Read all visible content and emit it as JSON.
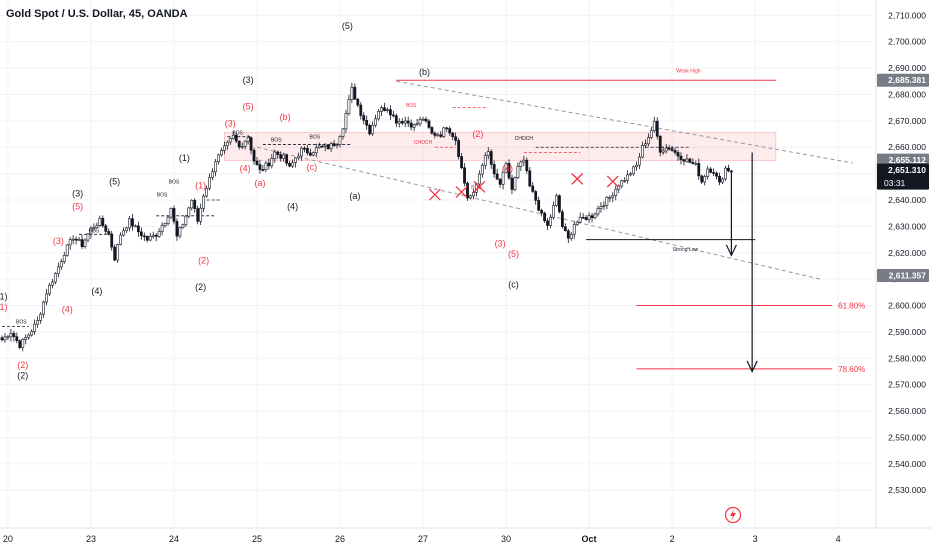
{
  "header": {
    "title": "Gold Spot / U.S. Dollar, 45, OANDA"
  },
  "chart_data": {
    "type": "candlestick",
    "symbol": "Gold Spot / U.S. Dollar",
    "interval": "45",
    "source": "OANDA",
    "ylim": [
      2525,
      2715
    ],
    "y_ticks": [
      2530,
      2540,
      2550,
      2560,
      2570,
      2580,
      2590,
      2600,
      2610,
      2620,
      2630,
      2640,
      2650,
      2660,
      2670,
      2680,
      2690,
      2700,
      2710
    ],
    "y_tick_labels": [
      "2,530.000",
      "2,540.000",
      "2,550.000",
      "2,560.000",
      "2,570.000",
      "2,580.000",
      "2,590.000",
      "2,600.000",
      "2,610.000",
      "2,620.000",
      "2,630.000",
      "2,640.000",
      "2,650.000",
      "2,660.000",
      "2,670.000",
      "2,680.000",
      "2,690.000",
      "2,700.000",
      "2,710.000"
    ],
    "x_ticks": [
      {
        "label": "20",
        "i": 2
      },
      {
        "label": "23",
        "i": 30
      },
      {
        "label": "24",
        "i": 58
      },
      {
        "label": "25",
        "i": 86
      },
      {
        "label": "26",
        "i": 114
      },
      {
        "label": "27",
        "i": 142
      },
      {
        "label": "30",
        "i": 170
      },
      {
        "label": "Oct",
        "i": 198
      },
      {
        "label": "2",
        "i": 226
      },
      {
        "label": "3",
        "i": 254
      },
      {
        "label": "4",
        "i": 282
      }
    ],
    "price_tags": [
      {
        "value": 2685.381,
        "label": "2,685.381",
        "style": "gray"
      },
      {
        "value": 2655.112,
        "label": "2,655.112",
        "style": "gray"
      },
      {
        "value": 2651.31,
        "label": "2,651.310",
        "style": "dark",
        "sub": "03:31"
      },
      {
        "value": 2611.357,
        "label": "2,611.357",
        "style": "gray"
      }
    ],
    "anchors": [
      [
        0,
        2587
      ],
      [
        3,
        2590
      ],
      [
        6,
        2585
      ],
      [
        9,
        2589
      ],
      [
        12,
        2594
      ],
      [
        15,
        2605
      ],
      [
        18,
        2612
      ],
      [
        21,
        2620
      ],
      [
        24,
        2626
      ],
      [
        27,
        2623
      ],
      [
        30,
        2629
      ],
      [
        33,
        2632
      ],
      [
        36,
        2627
      ],
      [
        38,
        2618
      ],
      [
        40,
        2627
      ],
      [
        43,
        2632
      ],
      [
        46,
        2628
      ],
      [
        49,
        2625
      ],
      [
        52,
        2627
      ],
      [
        55,
        2632
      ],
      [
        57,
        2637
      ],
      [
        59,
        2626
      ],
      [
        61,
        2631
      ],
      [
        64,
        2640
      ],
      [
        66,
        2632
      ],
      [
        68,
        2642
      ],
      [
        70,
        2648
      ],
      [
        72,
        2655
      ],
      [
        74,
        2658
      ],
      [
        76,
        2661
      ],
      [
        78,
        2664
      ],
      [
        80,
        2660
      ],
      [
        83,
        2664
      ],
      [
        85,
        2655
      ],
      [
        87,
        2651
      ],
      [
        90,
        2654
      ],
      [
        92,
        2658
      ],
      [
        95,
        2656
      ],
      [
        97,
        2652
      ],
      [
        99,
        2656
      ],
      [
        101,
        2659
      ],
      [
        104,
        2658
      ],
      [
        107,
        2660
      ],
      [
        110,
        2660
      ],
      [
        113,
        2662
      ],
      [
        115,
        2668
      ],
      [
        118,
        2682
      ],
      [
        121,
        2673
      ],
      [
        124,
        2666
      ],
      [
        127,
        2674
      ],
      [
        130,
        2675
      ],
      [
        133,
        2670
      ],
      [
        136,
        2670
      ],
      [
        139,
        2668
      ],
      [
        142,
        2671
      ],
      [
        145,
        2665
      ],
      [
        148,
        2665
      ],
      [
        150,
        2668
      ],
      [
        153,
        2663
      ],
      [
        155,
        2652
      ],
      [
        157,
        2641
      ],
      [
        159,
        2642
      ],
      [
        162,
        2654
      ],
      [
        164,
        2658
      ],
      [
        166,
        2649
      ],
      [
        168,
        2646
      ],
      [
        170,
        2653
      ],
      [
        172,
        2644
      ],
      [
        174,
        2652
      ],
      [
        176,
        2655
      ],
      [
        178,
        2645
      ],
      [
        180,
        2640
      ],
      [
        182,
        2634
      ],
      [
        184,
        2630
      ],
      [
        187,
        2641
      ],
      [
        189,
        2630
      ],
      [
        191,
        2625
      ],
      [
        193,
        2631
      ],
      [
        196,
        2633
      ],
      [
        199,
        2634
      ],
      [
        202,
        2638
      ],
      [
        205,
        2641
      ],
      [
        208,
        2646
      ],
      [
        211,
        2649
      ],
      [
        214,
        2653
      ],
      [
        216,
        2660
      ],
      [
        218,
        2664
      ],
      [
        220,
        2669
      ],
      [
        222,
        2659
      ],
      [
        225,
        2660
      ],
      [
        228,
        2657
      ],
      [
        231,
        2655
      ],
      [
        234,
        2653
      ],
      [
        236,
        2647
      ],
      [
        238,
        2652
      ],
      [
        240,
        2651
      ],
      [
        242,
        2646
      ],
      [
        244,
        2652
      ],
      [
        246,
        2651
      ]
    ],
    "annotations": [
      {
        "text": "(1)",
        "x": 0,
        "y": 2603.5,
        "color": "black"
      },
      {
        "text": "(1)",
        "x": 0,
        "y": 2599.5,
        "color": "red"
      },
      {
        "text": "(2)",
        "x": 7,
        "y": 2577.5,
        "color": "red"
      },
      {
        "text": "(2)",
        "x": 7,
        "y": 2573.5,
        "color": "black"
      },
      {
        "text": "(3)",
        "x": 19,
        "y": 2624.5,
        "color": "red"
      },
      {
        "text": "(4)",
        "x": 22,
        "y": 2598.5,
        "color": "red"
      },
      {
        "text": "(3)",
        "x": 25.5,
        "y": 2642.5,
        "color": "black"
      },
      {
        "text": "(5)",
        "x": 25.5,
        "y": 2637.5,
        "color": "red"
      },
      {
        "text": "(4)",
        "x": 32,
        "y": 2605.5,
        "color": "black"
      },
      {
        "text": "(5)",
        "x": 38,
        "y": 2647,
        "color": "black"
      },
      {
        "text": "(2)",
        "x": 67,
        "y": 2607,
        "color": "black"
      },
      {
        "text": "(2)",
        "x": 68,
        "y": 2617,
        "color": "red"
      },
      {
        "text": "(1)",
        "x": 67,
        "y": 2645.5,
        "color": "red"
      },
      {
        "text": "(1)",
        "x": 61.5,
        "y": 2656,
        "color": "black"
      },
      {
        "text": "(3)",
        "x": 83,
        "y": 2685.5,
        "color": "black"
      },
      {
        "text": "(3)",
        "x": 77,
        "y": 2669,
        "color": "red"
      },
      {
        "text": "(5)",
        "x": 83,
        "y": 2675.5,
        "color": "red"
      },
      {
        "text": "(4)",
        "x": 82,
        "y": 2652,
        "color": "red"
      },
      {
        "text": "(a)",
        "x": 87,
        "y": 2646.5,
        "color": "red"
      },
      {
        "text": "(b)",
        "x": 95.5,
        "y": 2671.5,
        "color": "red"
      },
      {
        "text": "(4)",
        "x": 98,
        "y": 2637.5,
        "color": "black"
      },
      {
        "text": "(c)",
        "x": 104.5,
        "y": 2652.5,
        "color": "red"
      },
      {
        "text": "(5)",
        "x": 116.5,
        "y": 2706,
        "color": "black"
      },
      {
        "text": "(b)",
        "x": 142.5,
        "y": 2688.5,
        "color": "black"
      },
      {
        "text": "(a)",
        "x": 119,
        "y": 2641.5,
        "color": "black"
      },
      {
        "text": "(2)",
        "x": 160.5,
        "y": 2665,
        "color": "red"
      },
      {
        "text": "(4)",
        "x": 170.5,
        "y": 2652,
        "color": "red"
      },
      {
        "text": "(3)",
        "x": 168,
        "y": 2623.5,
        "color": "red"
      },
      {
        "text": "(5)",
        "x": 172.5,
        "y": 2619.5,
        "color": "red"
      },
      {
        "text": "(c)",
        "x": 172.5,
        "y": 2608,
        "color": "black"
      }
    ],
    "small_labels": [
      {
        "text": "BOS",
        "x": 6.5,
        "y": 2594,
        "color": "black"
      },
      {
        "text": "BOS",
        "x": 31,
        "y": 2628.5,
        "color": "black"
      },
      {
        "text": "BOS",
        "x": 54,
        "y": 2642,
        "color": "black"
      },
      {
        "text": "BOS",
        "x": 58,
        "y": 2647,
        "color": "black"
      },
      {
        "text": "BOS",
        "x": 79.5,
        "y": 2665.5,
        "color": "black"
      },
      {
        "text": "BOS",
        "x": 92.5,
        "y": 2663,
        "color": "black"
      },
      {
        "text": "BOS",
        "x": 105.5,
        "y": 2664,
        "color": "black"
      },
      {
        "text": "BOS",
        "x": 138,
        "y": 2676,
        "color": "red"
      },
      {
        "text": "CHOCH",
        "x": 142,
        "y": 2662,
        "color": "red"
      },
      {
        "text": "BOS",
        "x": 160,
        "y": 2645,
        "color": "red"
      },
      {
        "text": "CHOCH",
        "x": 176,
        "y": 2663.5,
        "color": "black"
      },
      {
        "text": "Weak High",
        "x": 231.5,
        "y": 2689,
        "color": "red"
      },
      {
        "text": "Strong Low",
        "x": 230.5,
        "y": 2621.5,
        "color": "black"
      }
    ],
    "fib_levels": [
      {
        "label": "61.80%",
        "value": 2600
      },
      {
        "label": "78.60%",
        "value": 2576
      }
    ],
    "crosses": [
      [
        146,
        2642
      ],
      [
        155,
        2643
      ],
      [
        161,
        2645
      ],
      [
        194,
        2648
      ],
      [
        206,
        2647
      ]
    ]
  }
}
